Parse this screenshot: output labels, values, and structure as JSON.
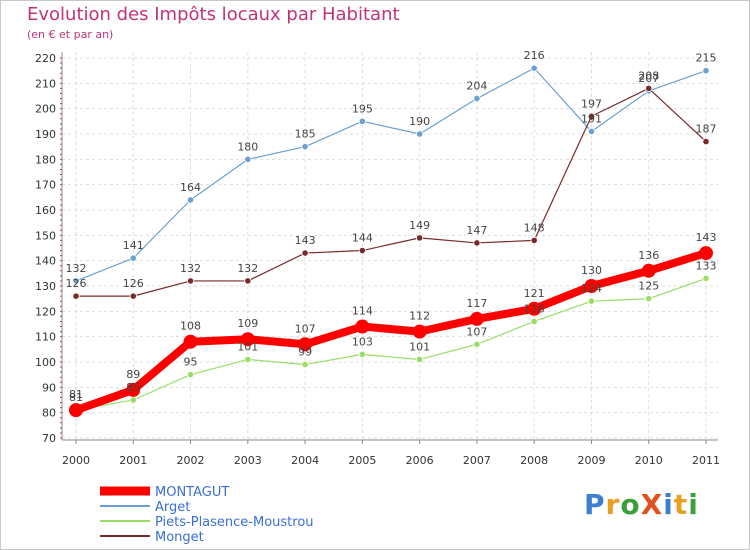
{
  "header": {
    "title": "Evolution des Impôts locaux par Habitant",
    "subtitle": "(en € et par an)"
  },
  "logo": {
    "text": "Proxiti",
    "letters": [
      {
        "ch": "P",
        "color": "#3a7fd0"
      },
      {
        "ch": "r",
        "color": "#e8a020"
      },
      {
        "ch": "o",
        "color": "#3aa03a"
      },
      {
        "ch": "X",
        "color": "#e05020"
      },
      {
        "ch": "i",
        "color": "#3a7fd0"
      },
      {
        "ch": "t",
        "color": "#e8a020"
      },
      {
        "ch": "i",
        "color": "#3aa03a"
      }
    ]
  },
  "chart_data": {
    "type": "line",
    "title": "Evolution des Impôts locaux par Habitant",
    "subtitle": "(en € et par an)",
    "xlabel": "",
    "ylabel": "",
    "ylim": [
      70,
      220
    ],
    "yticks": [
      70,
      80,
      90,
      100,
      110,
      120,
      130,
      140,
      150,
      160,
      170,
      180,
      190,
      200,
      210,
      220
    ],
    "grid": true,
    "legend_position": "bottom-left",
    "x": [
      "2000",
      "2001",
      "2002",
      "2003",
      "2004",
      "2005",
      "2006",
      "2007",
      "2008",
      "2009",
      "2010",
      "2011"
    ],
    "series": [
      {
        "name": "MONTAGUT",
        "color": "#ff0000",
        "values": [
          81,
          89,
          108,
          109,
          107,
          114,
          112,
          117,
          121,
          130,
          136,
          143
        ],
        "thick": true
      },
      {
        "name": "Arget",
        "color": "#6ba0d0",
        "values": [
          132,
          141,
          164,
          180,
          185,
          195,
          190,
          204,
          216,
          191,
          207,
          215
        ],
        "thick": false
      },
      {
        "name": "Piets-Plasence-Moustrou",
        "color": "#99dd66",
        "values": [
          81,
          85,
          95,
          101,
          99,
          103,
          101,
          107,
          116,
          124,
          125,
          133
        ],
        "thick": false
      },
      {
        "name": "Monget",
        "color": "#7a2a2a",
        "values": [
          126,
          126,
          132,
          132,
          143,
          144,
          149,
          147,
          148,
          197,
          208,
          187
        ],
        "thick": false
      }
    ],
    "data_labels": [
      {
        "series": 0,
        "labels": [
          "81",
          "89",
          "108",
          "109",
          "107",
          "114",
          "112",
          "117",
          "121",
          "130",
          "136",
          "143"
        ]
      },
      {
        "series": 1,
        "labels": [
          "132",
          "141",
          "164",
          "180",
          "185",
          "195",
          "190",
          "204",
          "216",
          "191",
          "207",
          "215"
        ]
      },
      {
        "series": 2,
        "labels": [
          "81",
          "85",
          "95",
          "101",
          "99",
          "103",
          "101",
          "107",
          "116",
          "124",
          "125",
          "133"
        ]
      },
      {
        "series": 3,
        "labels": [
          "126",
          "126",
          "132",
          "132",
          "143",
          "144",
          "149",
          "147",
          "148",
          "197",
          "208",
          "187"
        ]
      }
    ]
  }
}
